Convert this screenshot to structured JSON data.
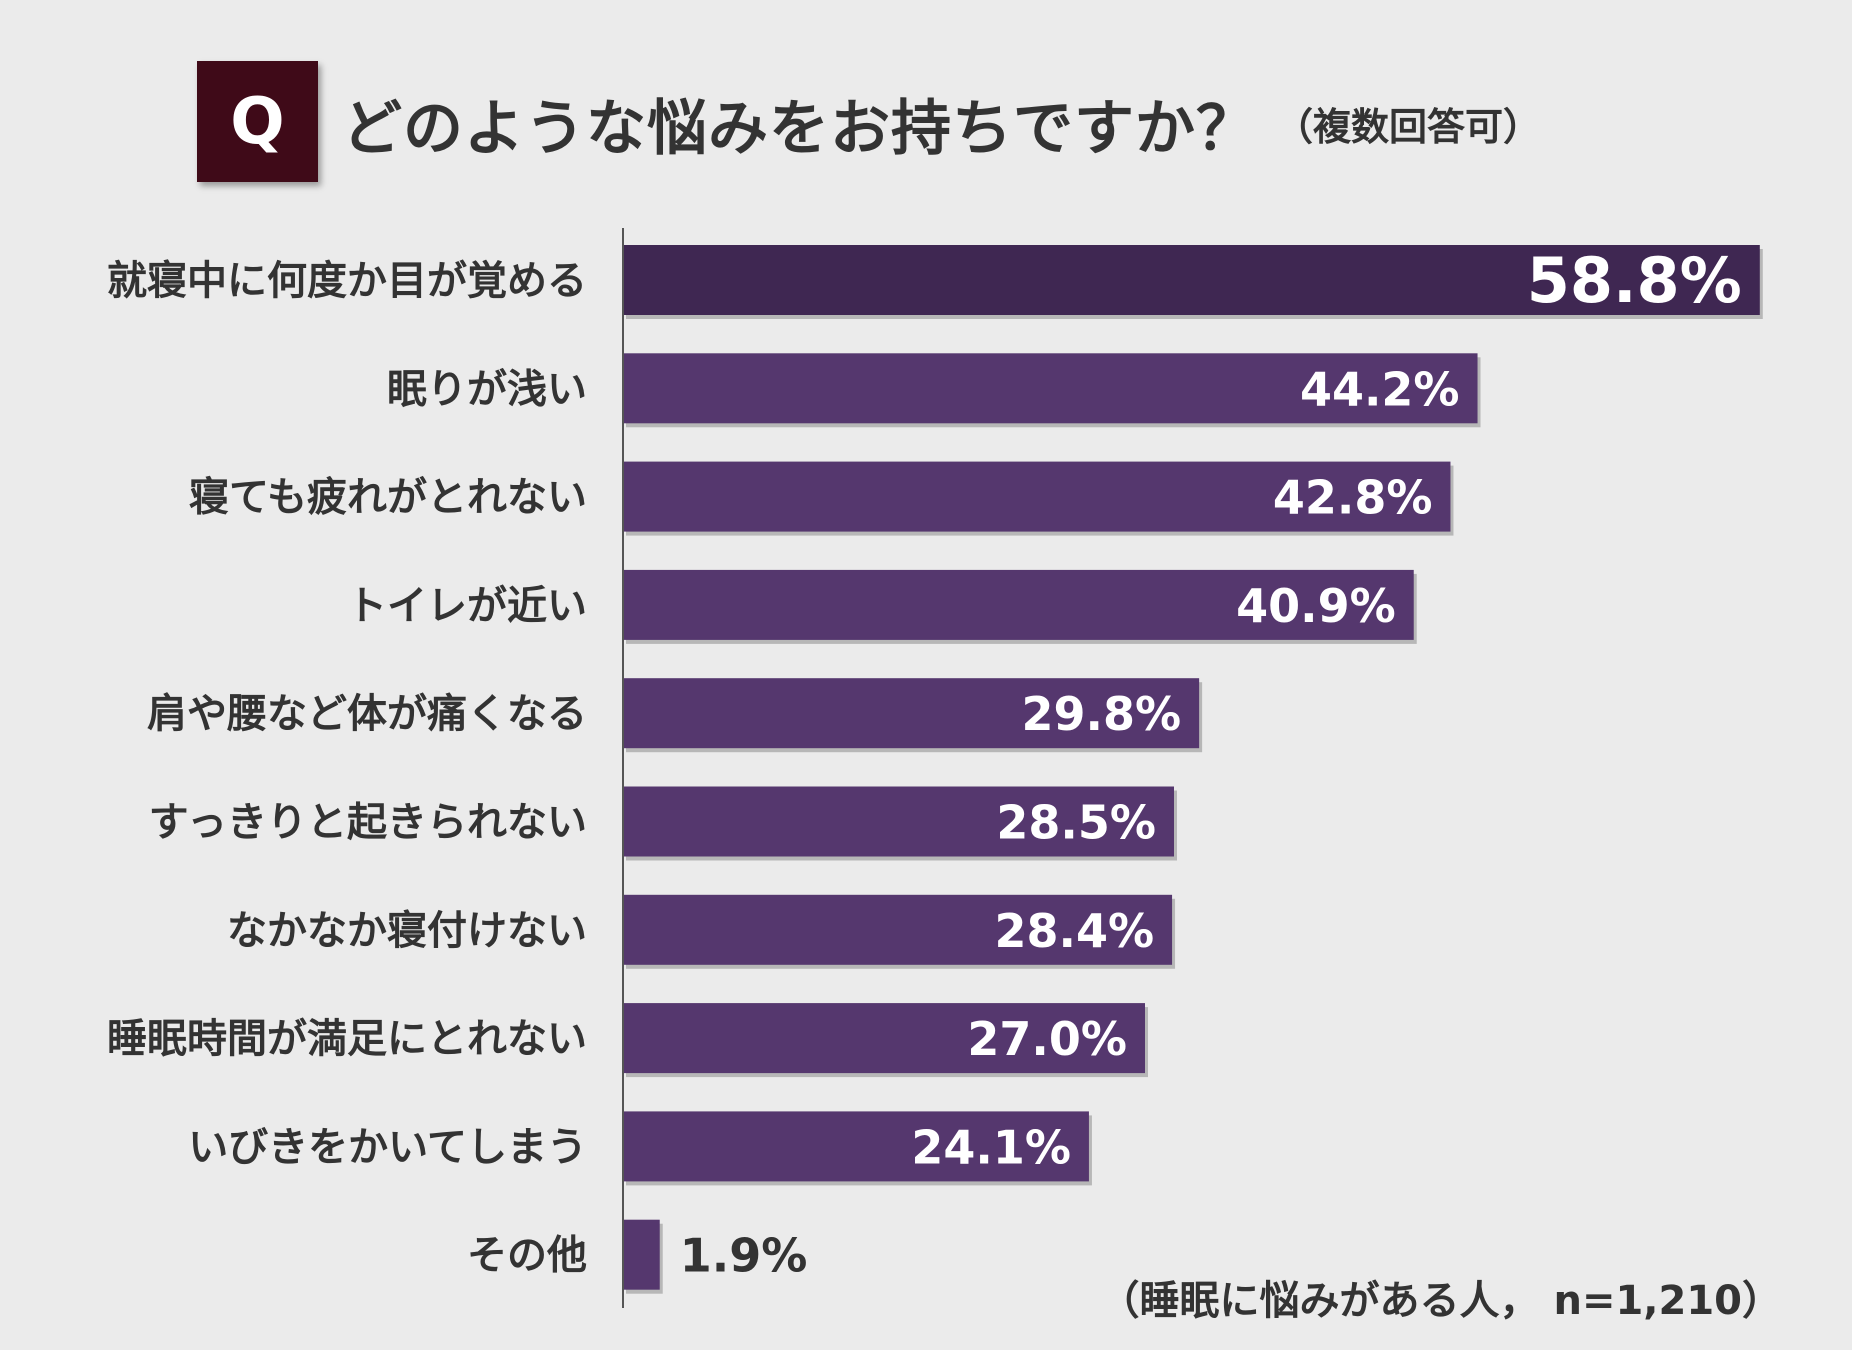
{
  "header": {
    "badge": "Q",
    "question": "どのような悩みをお持ちですか？",
    "multiple_answers_note": "（複数回答可）"
  },
  "chart_data": {
    "type": "bar",
    "orientation": "horizontal",
    "title": "どのような悩みをお持ちですか？（複数回答可）",
    "unit": "%",
    "categories": [
      "就寝中に何度か目が覚める",
      "眠りが浅い",
      "寝ても疲れがとれない",
      "トイレが近い",
      "肩や腰など体が痛くなる",
      "すっきりと起きられない",
      "なかなか寝付けない",
      "睡眠時間が満足にとれない",
      "いびきをかいてしまう",
      "その他"
    ],
    "values": [
      58.8,
      44.2,
      42.8,
      40.9,
      29.8,
      28.5,
      28.4,
      27.0,
      24.1,
      1.9
    ],
    "value_labels": [
      "58.8%",
      "44.2%",
      "42.8%",
      "40.9%",
      "29.8%",
      "28.5%",
      "28.4%",
      "27.0%",
      "24.1%",
      "1.9%"
    ],
    "xlim": [
      0,
      60
    ],
    "colors": {
      "highlight": "#3f2752",
      "bar": "#55376e",
      "label_inside": "#ffffff",
      "label_outside": "#333333",
      "category_text": "#333333",
      "axis": "#555555"
    },
    "footnote": "（睡眠に悩みがある人， n=1,210）"
  }
}
